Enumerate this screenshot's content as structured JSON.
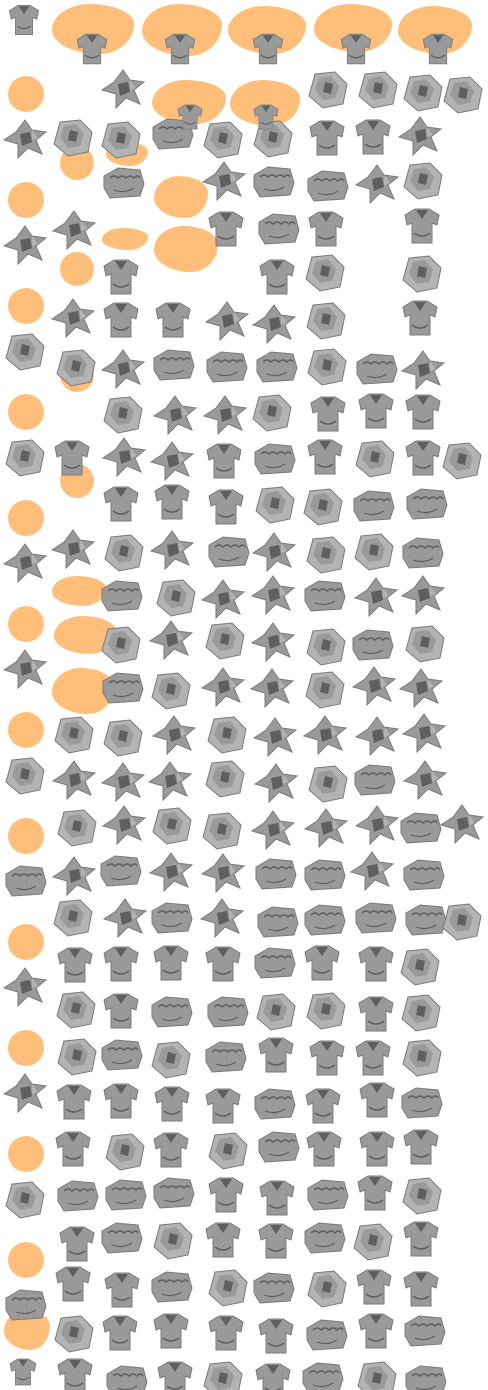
{
  "sheet": {
    "background": "#ffffff",
    "sprite_icon": "folded-shirt-icon",
    "sprite_colors": {
      "body": "#9a9a9a",
      "panel": "#b3b3b3",
      "shadow": "#5f5f5f",
      "outline": "#7a7a7a"
    },
    "highlight_icon": "highlight-blob",
    "highlight_color": "#ffbf7a",
    "variants": [
      "top-view",
      "folded-cross",
      "folded-star",
      "side-view"
    ]
  }
}
